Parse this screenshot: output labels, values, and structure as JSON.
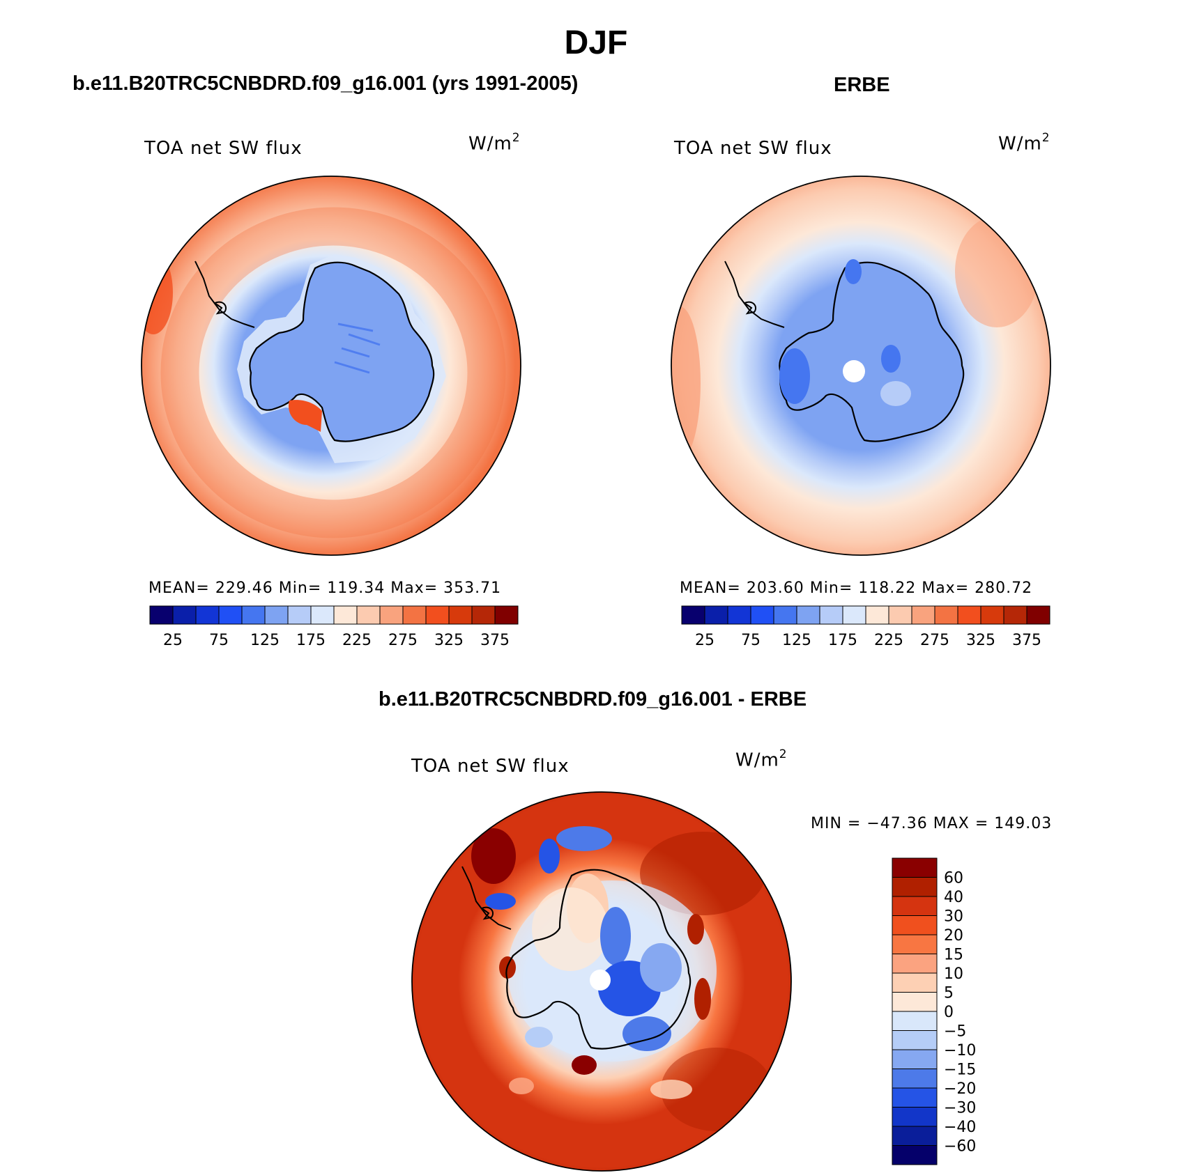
{
  "figure": {
    "title": "DJF"
  },
  "panels": {
    "model": {
      "header": "b.e11.B20TRC5CNBDRD.f09_g16.001 (yrs 1991-2005)",
      "variable": "TOA net SW flux",
      "units": "W/m",
      "units_exp": "2",
      "stats": "MEAN= 229.46   Min= 119.34   Max= 353.71"
    },
    "obs": {
      "header": "ERBE",
      "variable": "TOA net SW flux",
      "units": "W/m",
      "units_exp": "2",
      "stats": "MEAN= 203.60   Min= 118.22   Max= 280.72"
    },
    "diff": {
      "header": "b.e11.B20TRC5CNBDRD.f09_g16.001 - ERBE",
      "variable": "TOA net SW flux",
      "units": "W/m",
      "units_exp": "2",
      "stats": "MIN = −47.36 MAX = 149.03"
    }
  },
  "chart_data": [
    {
      "type": "heatmap",
      "projection": "south polar stereographic",
      "title": "b.e11.B20TRC5CNBDRD.f09_g16.001 (yrs 1991-2005)",
      "variable": "TOA net SW flux",
      "units": "W/m2",
      "mean": 229.46,
      "min": 119.34,
      "max": 353.71,
      "contour_levels": [
        25,
        50,
        75,
        100,
        125,
        150,
        175,
        200,
        225,
        250,
        275,
        300,
        325,
        350,
        375
      ],
      "colorbar_labels": [
        "25",
        "75",
        "125",
        "175",
        "225",
        "275",
        "325",
        "375"
      ],
      "colors": [
        "#08006e",
        "#0a1faa",
        "#1235d6",
        "#2050f5",
        "#4576f0",
        "#7ea3f2",
        "#b6ccf8",
        "#dbe8fb",
        "#fde8d8",
        "#fccbb0",
        "#f9a37e",
        "#f37343",
        "#f24f1e",
        "#d73a0c",
        "#b52707",
        "#800000"
      ]
    },
    {
      "type": "heatmap",
      "projection": "south polar stereographic",
      "title": "ERBE",
      "variable": "TOA net SW flux",
      "units": "W/m2",
      "mean": 203.6,
      "min": 118.22,
      "max": 280.72,
      "contour_levels": [
        25,
        50,
        75,
        100,
        125,
        150,
        175,
        200,
        225,
        250,
        275,
        300,
        325,
        350,
        375
      ],
      "colorbar_labels": [
        "25",
        "75",
        "125",
        "175",
        "225",
        "275",
        "325",
        "375"
      ],
      "colors": [
        "#08006e",
        "#0a1faa",
        "#1235d6",
        "#2050f5",
        "#4576f0",
        "#7ea3f2",
        "#b6ccf8",
        "#dbe8fb",
        "#fde8d8",
        "#fccbb0",
        "#f9a37e",
        "#f37343",
        "#f24f1e",
        "#d73a0c",
        "#b52707",
        "#800000"
      ]
    },
    {
      "type": "heatmap",
      "projection": "south polar stereographic",
      "title": "b.e11.B20TRC5CNBDRD.f09_g16.001 - ERBE",
      "variable": "TOA net SW flux",
      "units": "W/m2",
      "min": -47.36,
      "max": 149.03,
      "contour_levels": [
        -60,
        -40,
        -30,
        -20,
        -15,
        -10,
        -5,
        0,
        5,
        10,
        15,
        20,
        30,
        40,
        60
      ],
      "colorbar_labels": [
        "60",
        "40",
        "30",
        "20",
        "15",
        "10",
        "5",
        "0",
        "−5",
        "−10",
        "−15",
        "−20",
        "−30",
        "−40",
        "−60"
      ],
      "colors": [
        "#8a0000",
        "#b02000",
        "#d53410",
        "#f0501e",
        "#f87642",
        "#fba380",
        "#fdd0b4",
        "#fde8d8",
        "#d9e7fa",
        "#b5cdf7",
        "#86a8f1",
        "#4d7ae9",
        "#2554e6",
        "#1236c9",
        "#0a1e9a",
        "#05006a"
      ]
    }
  ]
}
